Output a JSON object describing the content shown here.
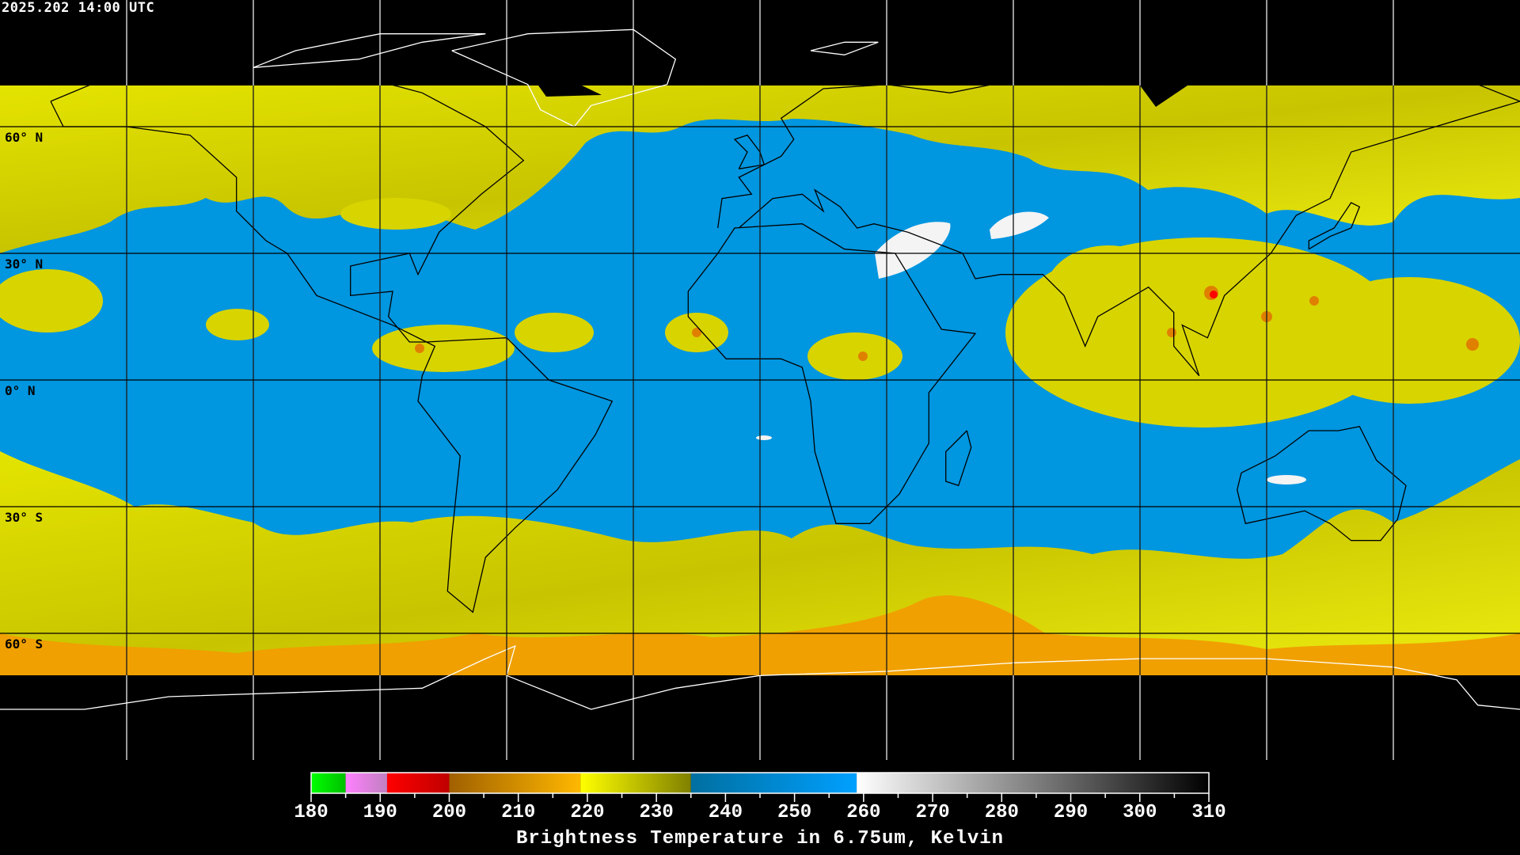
{
  "header": {
    "timestamp": "2025.202 14:00 UTC"
  },
  "map": {
    "projection": "equirectangular",
    "graticule_step_degrees": 30,
    "lat_labels": [
      "60° N",
      "30° N",
      "0° N",
      "30° S",
      "60° S"
    ],
    "colors": {
      "ocean_band": "#0096e0",
      "moist_mid": "#d6d600",
      "dry_high": "#f0a800",
      "coast_on_data": "#000000",
      "coast_off_data": "#ffffff"
    }
  },
  "colorbar": {
    "title": "Brightness Temperature in 6.75um, Kelvin",
    "range": [
      180,
      310
    ],
    "ticks": [
      "180",
      "190",
      "200",
      "210",
      "220",
      "230",
      "240",
      "250",
      "260",
      "270",
      "280",
      "290",
      "300",
      "310"
    ],
    "segments": [
      {
        "from": 180,
        "to": 185,
        "start": "#00ff00",
        "end": "#00c000"
      },
      {
        "from": 185,
        "to": 191,
        "start": "#ff80ff",
        "end": "#c080c0"
      },
      {
        "from": 191,
        "to": 200,
        "start": "#ff0000",
        "end": "#c00000"
      },
      {
        "from": 200,
        "to": 219,
        "start": "#a06000",
        "end": "#ffb800"
      },
      {
        "from": 219,
        "to": 235,
        "start": "#ffff00",
        "end": "#808000"
      },
      {
        "from": 235,
        "to": 259,
        "start": "#006fa0",
        "end": "#00a0ff"
      },
      {
        "from": 259,
        "to": 310,
        "start": "#ffffff",
        "end": "#000000"
      }
    ]
  }
}
